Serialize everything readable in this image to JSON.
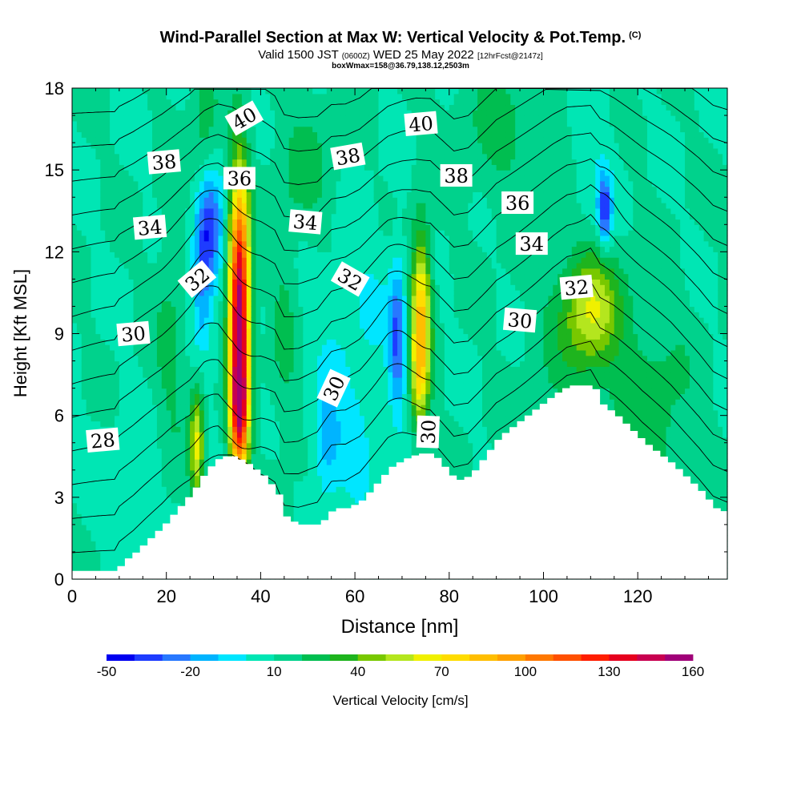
{
  "chart_data": {
    "type": "heatmap",
    "title": "Wind-Parallel Section at Max W: Vertical Velocity & Pot.Temp.",
    "title_mark": "(C)",
    "subtitle_prefix": "Valid 1500 JST",
    "subtitle_utc": "(0600Z)",
    "subtitle_date": "WED 25 May 2022",
    "subtitle_fcst": "[12hrFcst@2147z]",
    "box_info": "boxWmax=158@36.79,138.12,2503m",
    "xlabel": "Distance [nm]",
    "ylabel": "Height [Kft MSL]",
    "xlim": [
      0,
      139
    ],
    "ylim": [
      0,
      18
    ],
    "x_ticks": [
      0,
      20,
      40,
      60,
      80,
      100,
      120
    ],
    "y_ticks": [
      0,
      3,
      6,
      9,
      12,
      15,
      18
    ],
    "colorbar": {
      "label": "Vertical Velocity [cm/s]",
      "tick_labels": [
        "-50",
        "-20",
        "10",
        "40",
        "70",
        "100",
        "130",
        "160"
      ],
      "tick_values": [
        -50,
        -20,
        10,
        40,
        70,
        100,
        130,
        160
      ],
      "levels": [
        -50,
        -40,
        -30,
        -20,
        -10,
        0,
        10,
        20,
        30,
        40,
        50,
        60,
        70,
        80,
        90,
        100,
        110,
        120,
        130,
        140,
        150,
        160
      ],
      "colors": [
        "#0000f0",
        "#1e3cff",
        "#2878ff",
        "#00b4ff",
        "#00e6ff",
        "#00e6b4",
        "#00d28c",
        "#00be50",
        "#1eb41e",
        "#78c800",
        "#b4e61e",
        "#f0f000",
        "#ffdc00",
        "#ffbe00",
        "#ffa000",
        "#ff7800",
        "#ff5000",
        "#ff1e00",
        "#e6001e",
        "#c80050",
        "#a00078"
      ]
    },
    "background_w": 10,
    "vertical_velocity_features": [
      {
        "x": 35.5,
        "y": 9.5,
        "sx": 1.5,
        "sy": 3.5,
        "w": 155
      },
      {
        "x": 35.5,
        "y": 6.0,
        "sx": 1.2,
        "sy": 1.3,
        "w": 60
      },
      {
        "x": 74.0,
        "y": 9.5,
        "sx": 1.5,
        "sy": 2.2,
        "w": 75
      },
      {
        "x": 73.5,
        "y": 7.0,
        "sx": 1.2,
        "sy": 1.2,
        "w": 25
      },
      {
        "x": 110.0,
        "y": 10.0,
        "sx": 4.0,
        "sy": 1.5,
        "w": 40
      },
      {
        "x": 108.0,
        "y": 9.0,
        "sx": 7.0,
        "sy": 2.5,
        "w": 12
      },
      {
        "x": 26.5,
        "y": 5.0,
        "sx": 1.0,
        "sy": 1.5,
        "w": 50
      },
      {
        "x": 21.0,
        "y": 8.5,
        "sx": 2.5,
        "sy": 3.5,
        "w": 12
      },
      {
        "x": 45.0,
        "y": 9.0,
        "sx": 2.0,
        "sy": 3.0,
        "w": 12
      },
      {
        "x": 29.0,
        "y": 12.8,
        "sx": 2.0,
        "sy": 1.5,
        "w": -48
      },
      {
        "x": 27.5,
        "y": 10.5,
        "sx": 1.5,
        "sy": 1.5,
        "w": -25
      },
      {
        "x": 69.0,
        "y": 8.8,
        "sx": 1.2,
        "sy": 1.8,
        "w": -40
      },
      {
        "x": 54.0,
        "y": 5.0,
        "sx": 2.0,
        "sy": 1.5,
        "w": -25
      },
      {
        "x": 113.0,
        "y": 13.5,
        "sx": 1.0,
        "sy": 0.9,
        "w": -45
      },
      {
        "x": 60.0,
        "y": 10.0,
        "sx": 7.0,
        "sy": 2.5,
        "w": -10
      },
      {
        "x": 110.0,
        "y": 14.5,
        "sx": 4.0,
        "sy": 2.0,
        "w": -10
      },
      {
        "x": 60.0,
        "y": 5.0,
        "sx": 3.0,
        "sy": 1.5,
        "w": -15
      },
      {
        "x": 28.0,
        "y": 16.5,
        "sx": 2.0,
        "sy": 2.0,
        "w": 15
      },
      {
        "x": 50.0,
        "y": 15.0,
        "sx": 5.0,
        "sy": 2.0,
        "w": 12
      },
      {
        "x": 123.0,
        "y": 6.0,
        "sx": 6.0,
        "sy": 3.0,
        "w": 15
      },
      {
        "x": 92.0,
        "y": 16.5,
        "sx": 8.0,
        "sy": 2.0,
        "w": 12
      },
      {
        "x": 12.0,
        "y": 3.0,
        "sx": 5.0,
        "sy": 2.0,
        "w": -8
      }
    ],
    "terrain": {
      "x": [
        0,
        9,
        10,
        13,
        16,
        19,
        22,
        25,
        28,
        31,
        34,
        37,
        40,
        43,
        45,
        48,
        52,
        55,
        58,
        61,
        64,
        67,
        70,
        73,
        76,
        78,
        81,
        84,
        87,
        90,
        93,
        96,
        99,
        102,
        105,
        110,
        112,
        115,
        118,
        121,
        124,
        127,
        130,
        133,
        136,
        139
      ],
      "y": [
        0.3,
        0.3,
        0.6,
        1.0,
        1.5,
        2.0,
        2.6,
        3.2,
        4.0,
        4.5,
        4.5,
        4.2,
        3.8,
        3.2,
        2.2,
        2.0,
        2.0,
        2.6,
        2.6,
        2.9,
        3.5,
        4.1,
        4.4,
        4.6,
        4.6,
        4.2,
        3.6,
        3.8,
        4.5,
        5.2,
        5.6,
        6.0,
        6.4,
        6.8,
        7.1,
        7.1,
        6.4,
        6.0,
        5.5,
        5.0,
        4.6,
        4.2,
        3.7,
        3.2,
        2.6,
        2.4
      ]
    },
    "theta_contours": {
      "levels": [
        28,
        29,
        30,
        31,
        32,
        33,
        34,
        35,
        36,
        37,
        38,
        39,
        40,
        41
      ],
      "labels": [
        {
          "text": "28",
          "x": 6.5,
          "y": 5.1,
          "angle": -5
        },
        {
          "text": "30",
          "x": 13.0,
          "y": 9.0,
          "angle": -5
        },
        {
          "text": "30",
          "x": 55.5,
          "y": 7.0,
          "angle": -65
        },
        {
          "text": "30",
          "x": 75.5,
          "y": 5.4,
          "angle": -88
        },
        {
          "text": "30",
          "x": 95.0,
          "y": 9.5,
          "angle": 5
        },
        {
          "text": "32",
          "x": 26.5,
          "y": 11.0,
          "angle": -40
        },
        {
          "text": "32",
          "x": 59.0,
          "y": 11.0,
          "angle": 30
        },
        {
          "text": "32",
          "x": 107.0,
          "y": 10.7,
          "angle": -5
        },
        {
          "text": "34",
          "x": 16.5,
          "y": 12.9,
          "angle": -5
        },
        {
          "text": "34",
          "x": 49.5,
          "y": 13.1,
          "angle": 5
        },
        {
          "text": "34",
          "x": 97.5,
          "y": 12.3,
          "angle": 0
        },
        {
          "text": "36",
          "x": 35.5,
          "y": 14.7,
          "angle": 0
        },
        {
          "text": "36",
          "x": 94.5,
          "y": 13.8,
          "angle": 0
        },
        {
          "text": "38",
          "x": 19.5,
          "y": 15.3,
          "angle": -5
        },
        {
          "text": "38",
          "x": 58.5,
          "y": 15.5,
          "angle": -10
        },
        {
          "text": "38",
          "x": 81.5,
          "y": 14.8,
          "angle": 0
        },
        {
          "text": "40",
          "x": 36.5,
          "y": 16.9,
          "angle": -30
        },
        {
          "text": "40",
          "x": 74.0,
          "y": 16.7,
          "angle": -5
        }
      ]
    }
  }
}
